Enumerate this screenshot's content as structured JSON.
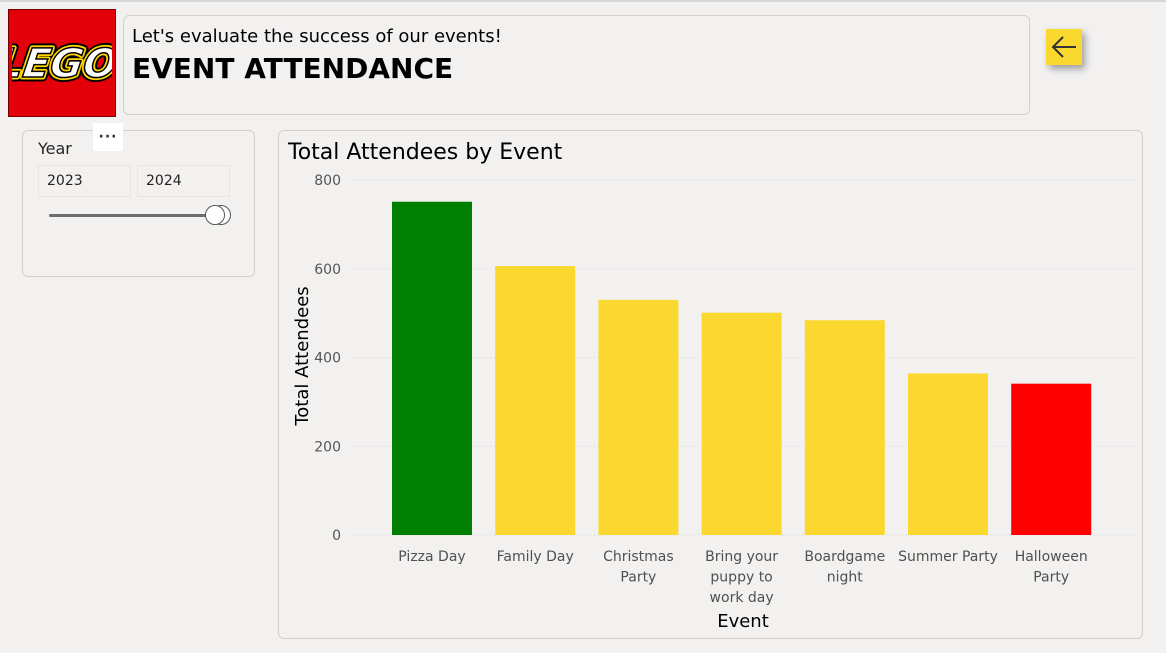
{
  "logo": {
    "text": "LEGO"
  },
  "header": {
    "subtitle": "Let's evaluate the success of our events!",
    "title": "EVENT ATTENDANCE"
  },
  "back_button": {
    "icon": "arrow-left-icon",
    "color": "#fad82f"
  },
  "slicer": {
    "more_menu": "···",
    "title": "Year",
    "start": "2023",
    "end": "2024"
  },
  "colors": {
    "best": "#008000",
    "default": "#fad82f",
    "worst": "#ff0000",
    "brand_red": "#e3000b"
  },
  "chart_data": {
    "type": "bar",
    "title": "Total Attendees by Event",
    "xlabel": "Event",
    "ylabel": "Total Attendees",
    "ylim": [
      0,
      800
    ],
    "yticks": [
      0,
      200,
      400,
      600,
      800
    ],
    "grid": true,
    "categories": [
      "Pizza Day",
      "Family Day",
      "Christmas Party",
      "Bring your puppy to work day",
      "Boardgame night",
      "Summer Party",
      "Halloween Party"
    ],
    "category_lines": [
      [
        "Pizza Day"
      ],
      [
        "Family Day"
      ],
      [
        "Christmas",
        "Party"
      ],
      [
        "Bring your",
        "puppy to",
        "work day"
      ],
      [
        "Boardgame",
        "night"
      ],
      [
        "Summer Party"
      ],
      [
        "Halloween",
        "Party"
      ]
    ],
    "values": [
      751,
      606,
      530,
      501,
      484,
      364,
      341
    ],
    "bar_colors": [
      "#008000",
      "#fad82f",
      "#fad82f",
      "#fad82f",
      "#fad82f",
      "#fad82f",
      "#ff0000"
    ]
  }
}
